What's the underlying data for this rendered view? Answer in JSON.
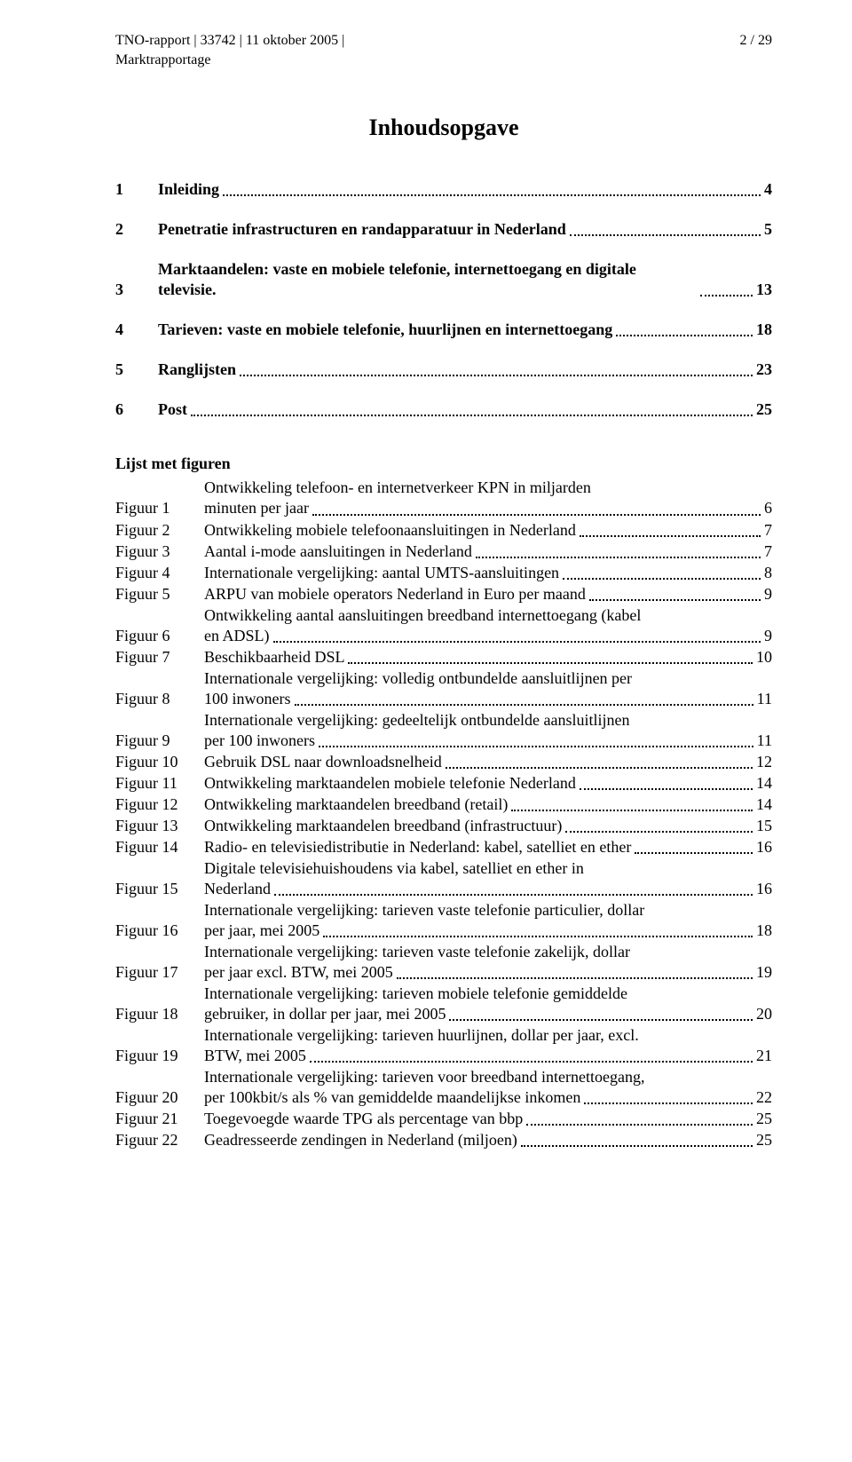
{
  "header": {
    "left": "TNO-rapport | 33742  | 11 oktober 2005 |",
    "right": "2 / 29",
    "sub": "Marktrapportage"
  },
  "title": "Inhoudsopgave",
  "toc": [
    {
      "num": "1",
      "label": "Inleiding",
      "page": "4"
    },
    {
      "num": "2",
      "label": "Penetratie infrastructuren en randapparatuur in Nederland",
      "page": "5"
    },
    {
      "num": "3",
      "label": "Marktaandelen: vaste en mobiele telefonie, internettoegang en digitale televisie.",
      "page": "13"
    },
    {
      "num": "4",
      "label": "Tarieven: vaste en mobiele telefonie, huurlijnen en internettoegang",
      "page": "18"
    },
    {
      "num": "5",
      "label": "Ranglijsten",
      "page": "23"
    },
    {
      "num": "6",
      "label": "Post",
      "page": "25"
    }
  ],
  "lof_title": "Lijst met figuren",
  "lof": [
    {
      "label": "Figuur 1",
      "lines": [
        "Ontwikkeling  telefoon-  en  internetverkeer  KPN  in  miljarden",
        "minuten per jaar"
      ],
      "page": "6"
    },
    {
      "label": "Figuur 2",
      "lines": [
        "Ontwikkeling mobiele telefoonaansluitingen in Nederland"
      ],
      "page": "7"
    },
    {
      "label": "Figuur 3",
      "lines": [
        "Aantal i-mode aansluitingen in Nederland"
      ],
      "page": "7"
    },
    {
      "label": "Figuur 4",
      "lines": [
        "Internationale vergelijking: aantal UMTS-aansluitingen"
      ],
      "page": "8"
    },
    {
      "label": "Figuur 5",
      "lines": [
        "ARPU van mobiele operators Nederland in Euro per maand"
      ],
      "page": "9"
    },
    {
      "label": "Figuur 6",
      "lines": [
        "Ontwikkeling aantal aansluitingen breedband internettoegang (kabel",
        "en ADSL)"
      ],
      "page": "9"
    },
    {
      "label": "Figuur 7",
      "lines": [
        "Beschikbaarheid DSL"
      ],
      "page": "10"
    },
    {
      "label": "Figuur 8",
      "lines": [
        "Internationale vergelijking: volledig ontbundelde aansluitlijnen per",
        "100 inwoners"
      ],
      "page": "11"
    },
    {
      "label": "Figuur 9",
      "lines": [
        "Internationale vergelijking: gedeeltelijk ontbundelde aansluitlijnen",
        "per 100 inwoners"
      ],
      "page": "11"
    },
    {
      "label": "Figuur 10",
      "lines": [
        "Gebruik DSL naar downloadsnelheid"
      ],
      "page": "12"
    },
    {
      "label": "Figuur 11",
      "lines": [
        "Ontwikkeling marktaandelen mobiele telefonie Nederland"
      ],
      "page": "14"
    },
    {
      "label": "Figuur 12",
      "lines": [
        "Ontwikkeling marktaandelen breedband (retail)"
      ],
      "page": "14"
    },
    {
      "label": "Figuur 13",
      "lines": [
        "Ontwikkeling marktaandelen breedband (infrastructuur)"
      ],
      "page": "15"
    },
    {
      "label": "Figuur 14",
      "lines": [
        "Radio- en televisiedistributie in Nederland: kabel, satelliet en ether"
      ],
      "page": "16"
    },
    {
      "label": "Figuur 15",
      "lines": [
        "Digitale  televisiehuishoudens  via  kabel,  satelliet  en  ether  in",
        "Nederland"
      ],
      "page": "16"
    },
    {
      "label": "Figuur 16",
      "lines": [
        "Internationale vergelijking: tarieven vaste telefonie particulier, dollar",
        "per jaar, mei 2005"
      ],
      "page": "18"
    },
    {
      "label": "Figuur 17",
      "lines": [
        "Internationale vergelijking: tarieven vaste telefonie zakelijk, dollar",
        "per jaar excl. BTW, mei 2005"
      ],
      "page": "19"
    },
    {
      "label": "Figuur 18",
      "lines": [
        "Internationale vergelijking: tarieven mobiele telefonie gemiddelde",
        "gebruiker, in dollar per jaar, mei 2005"
      ],
      "page": "20"
    },
    {
      "label": "Figuur 19",
      "lines": [
        "Internationale vergelijking: tarieven huurlijnen, dollar per jaar, excl.",
        "BTW, mei 2005"
      ],
      "page": "21"
    },
    {
      "label": "Figuur 20",
      "lines": [
        "Internationale vergelijking: tarieven voor breedband internettoegang,",
        "per 100kbit/s als % van gemiddelde maandelijkse inkomen"
      ],
      "page": "22"
    },
    {
      "label": "Figuur 21",
      "lines": [
        "Toegevoegde waarde TPG als percentage van bbp"
      ],
      "page": "25"
    },
    {
      "label": "Figuur 22",
      "lines": [
        "Geadresseerde zendingen in Nederland (miljoen)"
      ],
      "page": "25"
    }
  ]
}
